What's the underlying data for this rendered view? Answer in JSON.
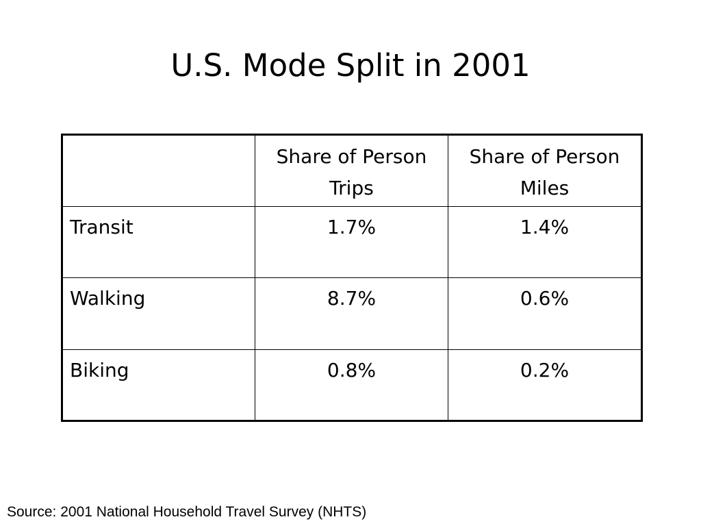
{
  "slide": {
    "title": "U.S. Mode Split in 2001",
    "source": "Source: 2001 National Household Travel Survey (NHTS)"
  },
  "table": {
    "header": {
      "corner": "",
      "trips_line1": "Share of Person",
      "trips_line2": "Trips",
      "miles_line1": "Share of Person",
      "miles_line2": "Miles"
    },
    "rows": [
      {
        "mode": "Transit",
        "trips": "1.7%",
        "miles": "1.4%"
      },
      {
        "mode": "Walking",
        "trips": "8.7%",
        "miles": "0.6%"
      },
      {
        "mode": "Biking",
        "trips": "0.8%",
        "miles": "0.2%"
      }
    ]
  }
}
